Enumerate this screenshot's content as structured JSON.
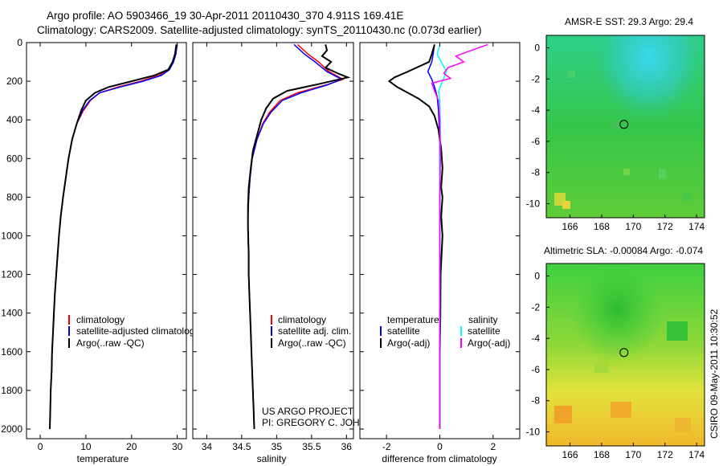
{
  "header": {
    "line1": "Argo profile: AO 5903466_19 30-Apr-2011 20110430_370 4.911S 169.41E",
    "line2": "Climatology: CARS2009. Satellite-adjusted climatology: synTS_20110430.nc (0.073d earlier)"
  },
  "credit": {
    "line1": "US ARGO PROJECT",
    "line2": "PI: GREGORY C. JOHNSON",
    "side": "CSIRO 09-May-2011 10:30:52"
  },
  "colors": {
    "climatology": "#ff0000",
    "satellite": "#0000ff",
    "argo": "#000000",
    "sat_salinity": "#00ffff",
    "argo_salinity": "#ff00ff"
  },
  "chart_data": [
    {
      "type": "line",
      "title": "",
      "xlabel": "temperature",
      "ylabel": "",
      "xlim": [
        -3,
        32
      ],
      "ylim": [
        2050,
        0
      ],
      "xticks": [
        0,
        10,
        20,
        30
      ],
      "yticks": [
        0,
        200,
        400,
        600,
        800,
        1000,
        1200,
        1400,
        1600,
        1800,
        2000
      ],
      "legend": [
        "climatology",
        "satellite-adjusted climatology",
        "Argo(..raw -QC)"
      ],
      "legend_colors": [
        "#ff0000",
        "#0000ff",
        "#000000"
      ],
      "series": [
        {
          "name": "climatology",
          "color": "#ff0000",
          "points": [
            [
              29.9,
              10
            ],
            [
              29.6,
              60
            ],
            [
              29,
              100
            ],
            [
              28,
              140
            ],
            [
              26,
              170
            ],
            [
              22,
              200
            ],
            [
              17,
              230
            ],
            [
              13,
              260
            ],
            [
              11,
              300
            ],
            [
              9.5,
              350
            ],
            [
              8,
              420
            ],
            [
              7,
              500
            ],
            [
              6.2,
              600
            ],
            [
              5.6,
              700
            ],
            [
              5,
              800
            ],
            [
              4.5,
              900
            ],
            [
              4.1,
              1000
            ],
            [
              3.8,
              1100
            ],
            [
              3.5,
              1200
            ],
            [
              3.2,
              1300
            ],
            [
              3,
              1400
            ],
            [
              2.8,
              1500
            ],
            [
              2.6,
              1600
            ],
            [
              2.5,
              1700
            ],
            [
              2.3,
              1800
            ],
            [
              2.2,
              1900
            ],
            [
              2.1,
              2000
            ]
          ]
        },
        {
          "name": "satellite-adjusted climatology",
          "color": "#0000ff",
          "points": [
            [
              30,
              10
            ],
            [
              29.7,
              60
            ],
            [
              29.2,
              100
            ],
            [
              28.3,
              140
            ],
            [
              26.5,
              170
            ],
            [
              22.5,
              200
            ],
            [
              17.5,
              230
            ],
            [
              13,
              260
            ],
            [
              10.8,
              300
            ],
            [
              9.3,
              350
            ],
            [
              8,
              420
            ],
            [
              7,
              500
            ],
            [
              6.2,
              600
            ],
            [
              5.6,
              700
            ],
            [
              5,
              800
            ],
            [
              4.5,
              900
            ],
            [
              4.1,
              1000
            ],
            [
              3.8,
              1100
            ],
            [
              3.5,
              1200
            ],
            [
              3.2,
              1300
            ],
            [
              3,
              1400
            ],
            [
              2.8,
              1500
            ],
            [
              2.6,
              1600
            ],
            [
              2.5,
              1700
            ],
            [
              2.3,
              1800
            ],
            [
              2.2,
              1900
            ],
            [
              2.1,
              2000
            ]
          ]
        },
        {
          "name": "Argo(..raw -QC)",
          "color": "#000000",
          "points": [
            [
              29.8,
              10
            ],
            [
              29.5,
              60
            ],
            [
              29,
              100
            ],
            [
              28,
              140
            ],
            [
              25,
              170
            ],
            [
              20,
              200
            ],
            [
              15,
              230
            ],
            [
              12,
              260
            ],
            [
              10,
              300
            ],
            [
              9,
              350
            ],
            [
              8,
              420
            ],
            [
              7,
              500
            ],
            [
              6.2,
              600
            ],
            [
              5.6,
              700
            ],
            [
              5,
              800
            ],
            [
              4.5,
              900
            ],
            [
              4.1,
              1000
            ],
            [
              3.8,
              1100
            ],
            [
              3.5,
              1200
            ],
            [
              3.2,
              1300
            ],
            [
              3,
              1400
            ],
            [
              2.8,
              1500
            ],
            [
              2.6,
              1600
            ],
            [
              2.5,
              1700
            ],
            [
              2.3,
              1800
            ],
            [
              2.2,
              1900
            ],
            [
              2.1,
              2000
            ]
          ]
        }
      ]
    },
    {
      "type": "line",
      "title": "",
      "xlabel": "salinity",
      "ylabel": "",
      "xlim": [
        33.8,
        36.1
      ],
      "ylim": [
        2050,
        0
      ],
      "xticks": [
        34,
        34.5,
        35,
        35.5,
        36
      ],
      "xticklabels": [
        "34",
        "34.5",
        "35",
        "35.5",
        "36"
      ],
      "legend": [
        "climatology",
        "satellite adj. clim.",
        "Argo(..raw -QC)"
      ],
      "legend_colors": [
        "#ff0000",
        "#0000ff",
        "#000000"
      ],
      "series": [
        {
          "name": "climatology",
          "color": "#ff0000",
          "points": [
            [
              35.3,
              10
            ],
            [
              35.45,
              60
            ],
            [
              35.6,
              100
            ],
            [
              35.75,
              150
            ],
            [
              35.95,
              190
            ],
            [
              35.7,
              220
            ],
            [
              35.3,
              260
            ],
            [
              35.05,
              300
            ],
            [
              34.9,
              360
            ],
            [
              34.8,
              420
            ],
            [
              34.72,
              500
            ],
            [
              34.65,
              600
            ],
            [
              34.62,
              700
            ],
            [
              34.6,
              800
            ],
            [
              34.59,
              900
            ],
            [
              34.59,
              1000
            ],
            [
              34.6,
              1100
            ],
            [
              34.6,
              1200
            ],
            [
              34.61,
              1300
            ],
            [
              34.62,
              1400
            ],
            [
              34.63,
              1500
            ],
            [
              34.64,
              1600
            ],
            [
              34.65,
              1700
            ],
            [
              34.66,
              1800
            ],
            [
              34.67,
              1900
            ],
            [
              34.68,
              2000
            ]
          ]
        },
        {
          "name": "satellite adj. clim.",
          "color": "#0000ff",
          "points": [
            [
              35.25,
              10
            ],
            [
              35.4,
              60
            ],
            [
              35.55,
              100
            ],
            [
              35.72,
              150
            ],
            [
              35.93,
              190
            ],
            [
              35.72,
              220
            ],
            [
              35.35,
              260
            ],
            [
              35.08,
              300
            ],
            [
              34.92,
              360
            ],
            [
              34.81,
              420
            ],
            [
              34.72,
              500
            ],
            [
              34.65,
              600
            ],
            [
              34.62,
              700
            ],
            [
              34.6,
              800
            ],
            [
              34.59,
              900
            ],
            [
              34.59,
              1000
            ],
            [
              34.6,
              1100
            ],
            [
              34.6,
              1200
            ],
            [
              34.61,
              1300
            ],
            [
              34.62,
              1400
            ],
            [
              34.63,
              1500
            ],
            [
              34.64,
              1600
            ],
            [
              34.65,
              1700
            ],
            [
              34.66,
              1800
            ],
            [
              34.67,
              1900
            ],
            [
              34.68,
              2000
            ]
          ]
        },
        {
          "name": "Argo(..raw -QC)",
          "color": "#000000",
          "points": [
            [
              35.7,
              10
            ],
            [
              35.72,
              40
            ],
            [
              35.65,
              70
            ],
            [
              35.78,
              100
            ],
            [
              35.7,
              130
            ],
            [
              35.88,
              160
            ],
            [
              36.02,
              180
            ],
            [
              35.6,
              215
            ],
            [
              35.15,
              250
            ],
            [
              34.95,
              290
            ],
            [
              34.85,
              340
            ],
            [
              34.78,
              400
            ],
            [
              34.72,
              480
            ],
            [
              34.66,
              560
            ],
            [
              34.63,
              650
            ],
            [
              34.6,
              750
            ],
            [
              34.59,
              850
            ],
            [
              34.59,
              950
            ],
            [
              34.6,
              1100
            ],
            [
              34.6,
              1200
            ],
            [
              34.61,
              1300
            ],
            [
              34.62,
              1400
            ],
            [
              34.63,
              1500
            ],
            [
              34.64,
              1600
            ],
            [
              34.65,
              1700
            ],
            [
              34.66,
              1800
            ],
            [
              34.67,
              1900
            ],
            [
              34.68,
              2000
            ]
          ]
        }
      ]
    },
    {
      "type": "line",
      "title": "",
      "xlabel": "difference from climatology",
      "ylabel": "",
      "xlim": [
        -3,
        3
      ],
      "ylim": [
        2050,
        0
      ],
      "xticks": [
        -2,
        0,
        2
      ],
      "legend_headers": [
        "temperature",
        "salinity"
      ],
      "legend": [
        "satellite",
        "Argo(-adj)",
        "satellite",
        "Argo(-adj)"
      ],
      "legend_colors": [
        "#0000ff",
        "#000000",
        "#00ffff",
        "#ff00ff"
      ],
      "series": [
        {
          "name": "temperature satellite",
          "color": "#0000ff",
          "points": [
            [
              -0.2,
              10
            ],
            [
              -0.25,
              60
            ],
            [
              -0.3,
              100
            ],
            [
              -0.45,
              150
            ],
            [
              -0.3,
              190
            ],
            [
              -0.2,
              230
            ],
            [
              -0.1,
              280
            ],
            [
              -0.05,
              350
            ],
            [
              0,
              500
            ],
            [
              0,
              700
            ],
            [
              0,
              1000
            ],
            [
              0,
              1400
            ],
            [
              0,
              2000
            ]
          ]
        },
        {
          "name": "temperature Argo(-adj)",
          "color": "#000000",
          "points": [
            [
              -0.2,
              10
            ],
            [
              -0.3,
              60
            ],
            [
              -0.4,
              100
            ],
            [
              -1.2,
              150
            ],
            [
              -1.7,
              180
            ],
            [
              -1.9,
              200
            ],
            [
              -1.6,
              230
            ],
            [
              -1.2,
              260
            ],
            [
              -0.8,
              290
            ],
            [
              -0.4,
              330
            ],
            [
              -0.2,
              380
            ],
            [
              -0.05,
              450
            ],
            [
              0.05,
              550
            ],
            [
              0.1,
              650
            ],
            [
              0.05,
              750
            ],
            [
              0.1,
              800
            ],
            [
              0.05,
              900
            ],
            [
              0.1,
              1000
            ],
            [
              0.03,
              1200
            ],
            [
              0.02,
              1400
            ],
            [
              0,
              1600
            ],
            [
              0,
              2000
            ]
          ]
        },
        {
          "name": "salinity satellite",
          "color": "#00ffff",
          "points": [
            [
              0,
              10
            ],
            [
              -0.1,
              60
            ],
            [
              0.05,
              100
            ],
            [
              0.25,
              150
            ],
            [
              0.1,
              200
            ],
            [
              -0.05,
              250
            ],
            [
              0,
              300
            ],
            [
              0.02,
              450
            ],
            [
              0,
              700
            ],
            [
              0,
              1000
            ],
            [
              0,
              1400
            ],
            [
              0,
              2000
            ]
          ]
        },
        {
          "name": "salinity Argo(-adj)",
          "color": "#ff00ff",
          "points": [
            [
              1.8,
              10
            ],
            [
              1.2,
              40
            ],
            [
              0.6,
              70
            ],
            [
              0.9,
              100
            ],
            [
              0.3,
              130
            ],
            [
              0.15,
              160
            ],
            [
              0.4,
              185
            ],
            [
              -0.3,
              210
            ],
            [
              -0.2,
              250
            ],
            [
              -0.05,
              300
            ],
            [
              0,
              400
            ],
            [
              0.02,
              600
            ],
            [
              0,
              800
            ],
            [
              0,
              1000
            ],
            [
              0,
              1400
            ],
            [
              0,
              2000
            ]
          ]
        }
      ]
    },
    {
      "type": "heatmap",
      "title": "AMSR-E SST: 29.3 Argo: 29.4",
      "xlim": [
        164.5,
        174.5
      ],
      "ylim": [
        -10.9,
        0.8
      ],
      "xticks": [
        166,
        168,
        170,
        172,
        174
      ],
      "yticks": [
        0,
        -2,
        -4,
        -6,
        -8,
        -10
      ],
      "marker": [
        169.41,
        -4.911
      ]
    },
    {
      "type": "heatmap",
      "title": "Altimetric SLA: -0.00084 Argo: -0.074",
      "xlim": [
        164.5,
        174.5
      ],
      "ylim": [
        -10.9,
        0.8
      ],
      "xticks": [
        166,
        168,
        170,
        172,
        174
      ],
      "yticks": [
        0,
        -2,
        -4,
        -6,
        -8,
        -10
      ],
      "marker": [
        169.41,
        -4.911
      ]
    }
  ]
}
